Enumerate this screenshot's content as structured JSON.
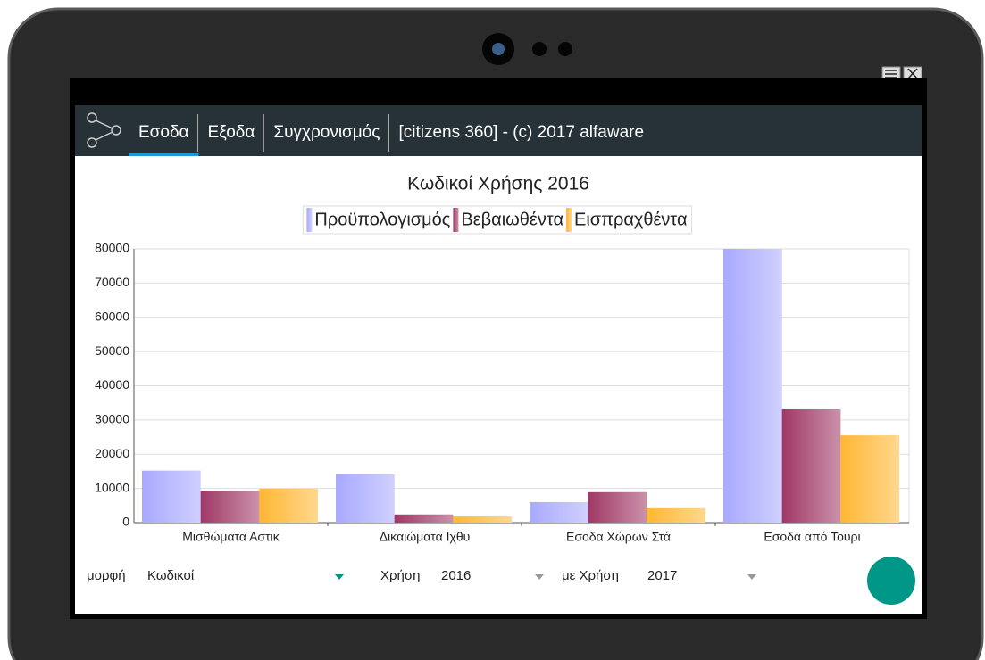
{
  "toolbar": {
    "tabs": [
      "Εσοδα",
      "Εξοδα",
      "Συγχρονισμός",
      "[citizens 360] - (c) 2017 alfaware"
    ]
  },
  "chart_data": {
    "type": "bar",
    "title": "Κωδικοί Χρήσης 2016",
    "categories": [
      "Μισθώματα Αστικ",
      "Δικαιώματα Ιχθυ",
      "Εσοδα Χώρων Στά",
      "Εσοδα από Τουρι"
    ],
    "series": [
      {
        "name": "Προϋπολογισμός",
        "color": "#a9a9ff",
        "values": [
          15200,
          14100,
          6000,
          80000
        ]
      },
      {
        "name": "Βεβαιωθέντα",
        "color": "#a03866",
        "values": [
          9300,
          2400,
          8900,
          33100
        ]
      },
      {
        "name": "Εισπραχθέντα",
        "color": "#ffb733",
        "values": [
          9900,
          1800,
          4200,
          25500
        ]
      }
    ],
    "ylim": [
      0,
      80000
    ],
    "yticks": [
      0,
      10000,
      20000,
      30000,
      40000,
      50000,
      60000,
      70000,
      80000
    ],
    "grid": true
  },
  "filters": [
    {
      "label": "μορφή",
      "value": "Κωδικοί"
    },
    {
      "label": "Χρήση",
      "value": "2016"
    },
    {
      "label": "με Χρήση",
      "value": "2017"
    }
  ]
}
